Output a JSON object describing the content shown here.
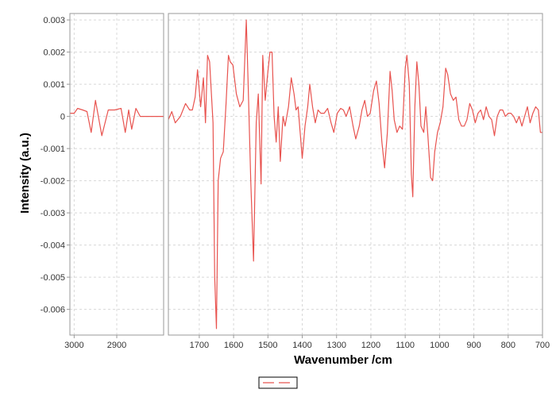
{
  "chart_data": {
    "type": "line",
    "xlabel": "Wavenumber /cm",
    "ylabel": "Intensity (a.u.)",
    "ylim": [
      -0.0068,
      0.0032
    ],
    "y_ticks": [
      0.003,
      0.002,
      0.001,
      0,
      -0.001,
      -0.002,
      -0.003,
      -0.004,
      -0.005,
      -0.006
    ],
    "y_tick_labels": [
      "0.003",
      "0.002",
      "0.001",
      "0",
      "-0.001",
      "-0.002",
      "-0.003",
      "-0.004",
      "-0.005",
      "-0.006"
    ],
    "grid": true,
    "legend_placement": "bottom-center",
    "panels": [
      {
        "name": "left",
        "xlim": [
          3010,
          2790
        ],
        "x_ticks": [
          3000,
          2900
        ],
        "x_tick_labels": [
          "3000",
          "2900"
        ]
      },
      {
        "name": "right",
        "xlim": [
          1790,
          700
        ],
        "x_ticks": [
          1700,
          1600,
          1500,
          1400,
          1300,
          1200,
          1100,
          1000,
          900,
          800,
          700
        ],
        "x_tick_labels": [
          "1700",
          "1600",
          "1500",
          "1400",
          "1300",
          "1200",
          "1100",
          "1000",
          "900",
          "800",
          "700"
        ]
      }
    ],
    "series": [
      {
        "color": "#e8534f",
        "segments": [
          {
            "panel": "left",
            "points": [
              [
                3010,
                0.0001
              ],
              [
                3000,
                0.0001
              ],
              [
                2992,
                0.00025
              ],
              [
                2980,
                0.0002
              ],
              [
                2970,
                0.00015
              ],
              [
                2960,
                -0.0005
              ],
              [
                2950,
                0.0005
              ],
              [
                2935,
                -0.0006
              ],
              [
                2920,
                0.0002
              ],
              [
                2905,
                0.0002
              ],
              [
                2890,
                0.00025
              ],
              [
                2880,
                -0.0005
              ],
              [
                2872,
                0.0002
              ],
              [
                2865,
                -0.0004
              ],
              [
                2855,
                0.00025
              ],
              [
                2845,
                0.0
              ],
              [
                2830,
                0.0
              ],
              [
                2810,
                0.0
              ],
              [
                2790,
                0.0
              ]
            ]
          },
          {
            "panel": "right",
            "points": [
              [
                1790,
                -0.0001
              ],
              [
                1780,
                0.00015
              ],
              [
                1770,
                -0.0002
              ],
              [
                1755,
                0.0
              ],
              [
                1740,
                0.0004
              ],
              [
                1728,
                0.0002
              ],
              [
                1720,
                0.0002
              ],
              [
                1712,
                0.0006
              ],
              [
                1705,
                0.00145
              ],
              [
                1696,
                0.0003
              ],
              [
                1688,
                0.0012
              ],
              [
                1682,
                -0.0002
              ],
              [
                1676,
                0.0019
              ],
              [
                1670,
                0.0017
              ],
              [
                1660,
                -0.0002
              ],
              [
                1655,
                -0.005
              ],
              [
                1650,
                -0.0066
              ],
              [
                1645,
                -0.002
              ],
              [
                1638,
                -0.0013
              ],
              [
                1630,
                -0.0011
              ],
              [
                1622,
                0.0004
              ],
              [
                1615,
                0.0019
              ],
              [
                1610,
                0.0017
              ],
              [
                1602,
                0.0016
              ],
              [
                1592,
                0.0007
              ],
              [
                1582,
                0.0003
              ],
              [
                1572,
                0.0005
              ],
              [
                1563,
                0.003
              ],
              [
                1558,
                0.0012
              ],
              [
                1550,
                -0.002
              ],
              [
                1542,
                -0.0045
              ],
              [
                1534,
                -0.0002
              ],
              [
                1528,
                0.0007
              ],
              [
                1520,
                -0.0021
              ],
              [
                1515,
                0.0019
              ],
              [
                1508,
                0.0005
              ],
              [
                1500,
                0.0014
              ],
              [
                1494,
                0.002
              ],
              [
                1488,
                0.002
              ],
              [
                1482,
                0.0
              ],
              [
                1476,
                -0.0008
              ],
              [
                1470,
                0.0003
              ],
              [
                1464,
                -0.0014
              ],
              [
                1456,
                0.0
              ],
              [
                1450,
                -0.0003
              ],
              [
                1440,
                0.0003
              ],
              [
                1432,
                0.0012
              ],
              [
                1424,
                0.0007
              ],
              [
                1418,
                0.0002
              ],
              [
                1412,
                0.0003
              ],
              [
                1406,
                -0.0005
              ],
              [
                1400,
                -0.0013
              ],
              [
                1392,
                -0.0003
              ],
              [
                1384,
                0.0003
              ],
              [
                1378,
                0.001
              ],
              [
                1370,
                0.0003
              ],
              [
                1362,
                -0.0002
              ],
              [
                1354,
                0.0002
              ],
              [
                1346,
                0.0001
              ],
              [
                1336,
                0.0001
              ],
              [
                1326,
                0.00025
              ],
              [
                1316,
                -0.0002
              ],
              [
                1308,
                -0.0005
              ],
              [
                1298,
                0.0001
              ],
              [
                1288,
                0.00025
              ],
              [
                1280,
                0.0002
              ],
              [
                1272,
                0.0
              ],
              [
                1262,
                0.0003
              ],
              [
                1252,
                -0.0003
              ],
              [
                1244,
                -0.0007
              ],
              [
                1234,
                -0.0003
              ],
              [
                1226,
                0.0002
              ],
              [
                1218,
                0.0005
              ],
              [
                1210,
                0.0
              ],
              [
                1202,
                0.0001
              ],
              [
                1192,
                0.0008
              ],
              [
                1184,
                0.0011
              ],
              [
                1176,
                0.0004
              ],
              [
                1168,
                -0.0008
              ],
              [
                1160,
                -0.0016
              ],
              [
                1152,
                -0.0005
              ],
              [
                1144,
                0.0014
              ],
              [
                1138,
                0.0008
              ],
              [
                1132,
                -0.0001
              ],
              [
                1124,
                -0.0005
              ],
              [
                1116,
                -0.0003
              ],
              [
                1108,
                -0.0004
              ],
              [
                1100,
                0.0015
              ],
              [
                1095,
                0.0019
              ],
              [
                1088,
                0.001
              ],
              [
                1082,
                -0.0018
              ],
              [
                1078,
                -0.0025
              ],
              [
                1072,
                0.0003
              ],
              [
                1066,
                0.0017
              ],
              [
                1060,
                0.001
              ],
              [
                1054,
                -0.0003
              ],
              [
                1046,
                -0.0005
              ],
              [
                1040,
                0.0003
              ],
              [
                1034,
                -0.0006
              ],
              [
                1026,
                -0.0019
              ],
              [
                1020,
                -0.002
              ],
              [
                1014,
                -0.0011
              ],
              [
                1006,
                -0.0005
              ],
              [
                998,
                -0.0002
              ],
              [
                990,
                0.0003
              ],
              [
                982,
                0.0015
              ],
              [
                976,
                0.0013
              ],
              [
                968,
                0.0007
              ],
              [
                960,
                0.0005
              ],
              [
                952,
                0.0006
              ],
              [
                944,
                -0.0001
              ],
              [
                936,
                -0.0003
              ],
              [
                928,
                -0.0003
              ],
              [
                920,
                -0.0001
              ],
              [
                912,
                0.0004
              ],
              [
                904,
                0.0002
              ],
              [
                896,
                -0.0002
              ],
              [
                888,
                0.0001
              ],
              [
                880,
                0.0002
              ],
              [
                872,
                -0.0001
              ],
              [
                864,
                0.0003
              ],
              [
                856,
                0.0
              ],
              [
                848,
                -0.0001
              ],
              [
                840,
                -0.0006
              ],
              [
                832,
                0.0
              ],
              [
                824,
                0.0002
              ],
              [
                816,
                0.0002
              ],
              [
                808,
                0.0
              ],
              [
                800,
                0.0001
              ],
              [
                792,
                0.0001
              ],
              [
                784,
                0.0
              ],
              [
                776,
                -0.0002
              ],
              [
                768,
                0.0
              ],
              [
                760,
                -0.0003
              ],
              [
                752,
                0.0
              ],
              [
                744,
                0.0003
              ],
              [
                736,
                -0.0002
              ],
              [
                728,
                0.0001
              ],
              [
                720,
                0.0003
              ],
              [
                712,
                0.0002
              ],
              [
                706,
                -0.0005
              ],
              [
                700,
                -0.0005
              ]
            ]
          }
        ]
      }
    ]
  }
}
